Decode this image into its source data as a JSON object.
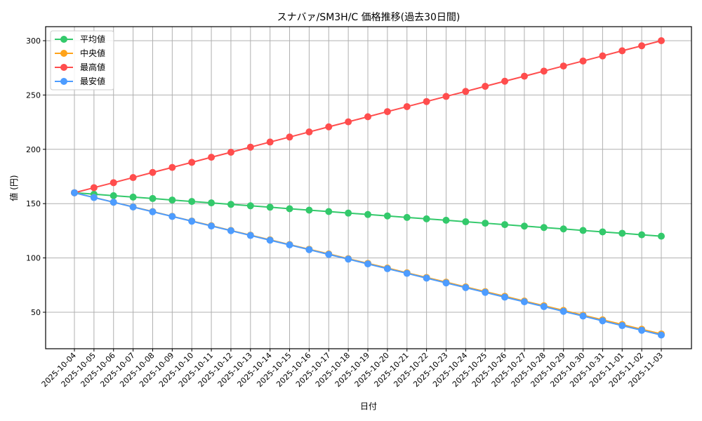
{
  "chart_data": {
    "type": "line",
    "title": "スナバァ/SM3H/C 価格推移(過去30日間)",
    "xlabel": "日付",
    "ylabel": "値 (円)",
    "ylim": [
      15,
      313
    ],
    "yticks": [
      50,
      100,
      150,
      200,
      250,
      300
    ],
    "grid": true,
    "legend_position": "upper left",
    "categories": [
      "2025-10-04",
      "2025-10-05",
      "2025-10-06",
      "2025-10-07",
      "2025-10-08",
      "2025-10-09",
      "2025-10-10",
      "2025-10-11",
      "2025-10-12",
      "2025-10-13",
      "2025-10-14",
      "2025-10-15",
      "2025-10-16",
      "2025-10-17",
      "2025-10-18",
      "2025-10-19",
      "2025-10-20",
      "2025-10-21",
      "2025-10-22",
      "2025-10-23",
      "2025-10-24",
      "2025-10-25",
      "2025-10-26",
      "2025-10-27",
      "2025-10-28",
      "2025-10-29",
      "2025-10-30",
      "2025-10-31",
      "2025-11-01",
      "2025-11-02",
      "2025-11-03"
    ],
    "series": [
      {
        "name": "平均値",
        "color": "#33c96b",
        "values": [
          160,
          158.7,
          157.3,
          156,
          154.7,
          153.3,
          152,
          150.7,
          149.3,
          148,
          146.7,
          145.3,
          144,
          142.7,
          141.3,
          140,
          138.7,
          137.3,
          136,
          134.7,
          133.3,
          132,
          130.7,
          129.3,
          128,
          126.7,
          125.3,
          124,
          122.7,
          121.3,
          120
        ]
      },
      {
        "name": "中央値",
        "color": "#ffa31a",
        "values": [
          160,
          155.7,
          151.3,
          147,
          142.7,
          138.3,
          134,
          129.7,
          125.3,
          121,
          116.7,
          112.3,
          108,
          103.7,
          99.3,
          95,
          90.7,
          86.3,
          82,
          77.7,
          73.3,
          69,
          64.7,
          60.3,
          56,
          51.7,
          47.3,
          43,
          38.7,
          34.3,
          30
        ]
      },
      {
        "name": "最高値",
        "color": "#ff4d4d",
        "values": [
          160,
          164.7,
          169.3,
          174,
          178.7,
          183.3,
          188,
          192.7,
          197.3,
          202,
          206.7,
          211.3,
          216,
          220.7,
          225.3,
          230,
          234.7,
          239.3,
          244,
          248.7,
          253.3,
          258,
          262.7,
          267.3,
          272,
          276.7,
          281.3,
          286,
          290.7,
          295.3,
          300
        ]
      },
      {
        "name": "最安値",
        "color": "#4d9cff",
        "values": [
          160,
          155.6,
          151.3,
          146.9,
          142.5,
          138.2,
          133.8,
          129.4,
          125.1,
          120.7,
          116.3,
          112,
          107.6,
          103.2,
          98.9,
          94.5,
          90.1,
          85.8,
          81.4,
          77,
          72.7,
          68.3,
          63.9,
          59.6,
          55.2,
          50.8,
          46.5,
          42.1,
          37.7,
          33.4,
          29
        ]
      }
    ]
  }
}
